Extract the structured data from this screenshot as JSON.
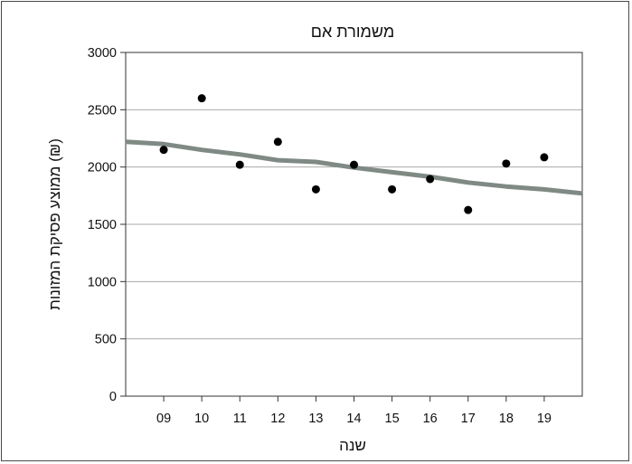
{
  "chart_data": {
    "type": "scatter",
    "title": "משמורת אם",
    "xlabel": "שנה",
    "ylabel": "ממוצע פסיקת המזונות (₪)",
    "x_ticks": [
      "09",
      "10",
      "11",
      "12",
      "13",
      "14",
      "15",
      "16",
      "17",
      "18",
      "19"
    ],
    "x_range": [
      2008,
      2020
    ],
    "ylim": [
      0,
      3000
    ],
    "y_ticks": [
      0,
      500,
      1000,
      1500,
      2000,
      2500,
      3000
    ],
    "y_tick_labels": [
      "0",
      "500",
      "1000",
      "1500",
      "2000",
      "2500",
      "3000"
    ],
    "grid": "horizontal",
    "series": [
      {
        "type": "scatter",
        "x": [
          2009,
          2010,
          2011,
          2012,
          2013,
          2014,
          2015,
          2016,
          2017,
          2018,
          2019
        ],
        "y": [
          2150,
          2600,
          2020,
          2220,
          1805,
          2020,
          1805,
          1895,
          1625,
          2030,
          2085
        ],
        "color": "#000000"
      },
      {
        "type": "line",
        "x": [
          2008,
          2009,
          2010,
          2011,
          2012,
          2013,
          2014,
          2015,
          2016,
          2017,
          2018,
          2019,
          2020
        ],
        "y": [
          2220,
          2200,
          2150,
          2110,
          2060,
          2045,
          1995,
          1955,
          1915,
          1865,
          1830,
          1805,
          1770
        ],
        "color": "#7f8a84"
      }
    ]
  }
}
